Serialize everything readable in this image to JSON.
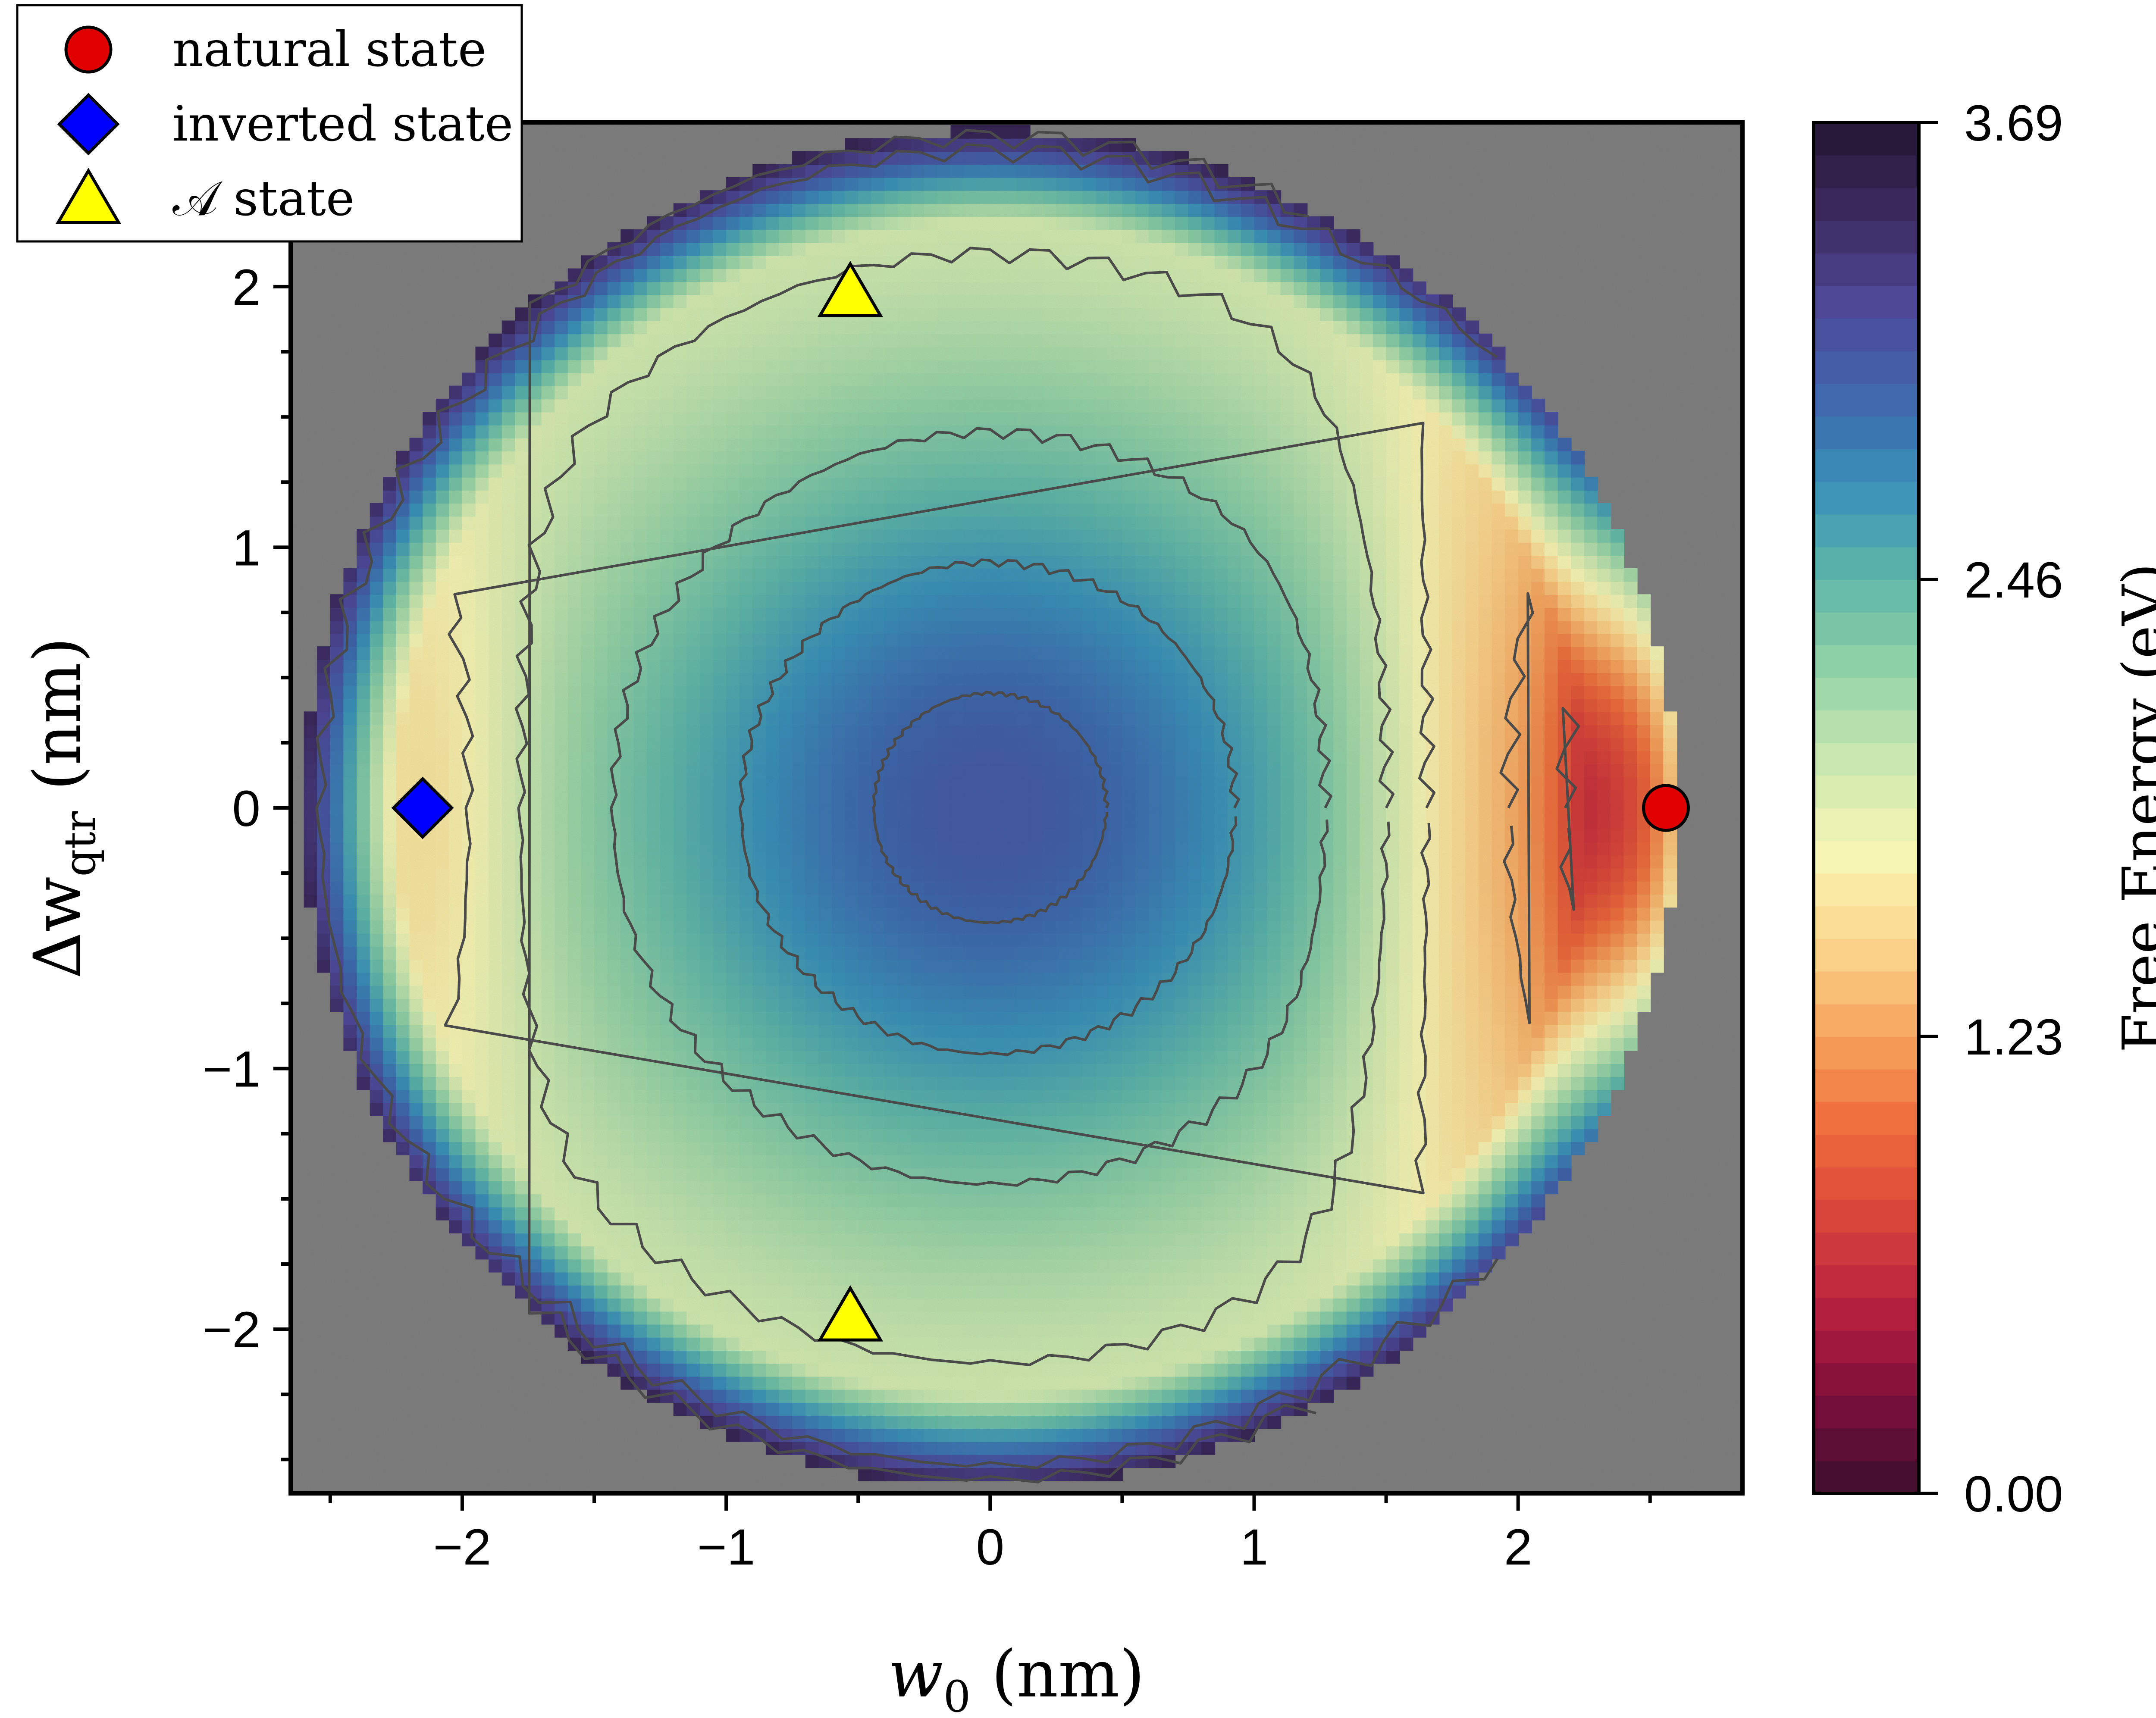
{
  "chart_data": {
    "type": "heatmap",
    "title": "",
    "xlabel": {
      "var": "w",
      "sub": "0",
      "unit": "(nm)"
    },
    "ylabel": {
      "var": "Δw",
      "sub": "qtr",
      "unit": "(nm)"
    },
    "xlim": [
      -2.65,
      2.85
    ],
    "ylim": [
      -2.63,
      2.63
    ],
    "x_ticks": [
      {
        "value": -2,
        "label": "−2"
      },
      {
        "value": -1,
        "label": "−1"
      },
      {
        "value": 0,
        "label": "0"
      },
      {
        "value": 1,
        "label": "1"
      },
      {
        "value": 2,
        "label": "2"
      }
    ],
    "y_ticks": [
      {
        "value": 2,
        "label": "2"
      },
      {
        "value": 1,
        "label": "1"
      },
      {
        "value": 0,
        "label": "0"
      },
      {
        "value": -1,
        "label": "−1"
      },
      {
        "value": -2,
        "label": "−2"
      }
    ],
    "background_color": "#808080",
    "contour_color": "#4a4a4a",
    "domain_radius_nm": 2.6,
    "colorbar": {
      "title": "Free Energy (eV)",
      "min": 0.0,
      "max": 3.69,
      "ticks": [
        {
          "value": 3.69,
          "label": "3.69"
        },
        {
          "value": 2.46,
          "label": "2.46"
        },
        {
          "value": 1.23,
          "label": "1.23"
        },
        {
          "value": 0.0,
          "label": "0.00"
        }
      ],
      "colormap": [
        "#3b0f2e",
        "#7a0d3a",
        "#b5203f",
        "#d7433a",
        "#ed6b3b",
        "#f6a35c",
        "#fcd58c",
        "#f7f6b4",
        "#cbe8b0",
        "#93d2a6",
        "#5fb7a8",
        "#3a91b9",
        "#3f67ad",
        "#4e4898",
        "#3b2a5e",
        "#241533"
      ]
    },
    "energy_levels": [
      {
        "energy": 0.45,
        "color": "#a0143d"
      },
      {
        "energy": 0.85,
        "color": "#d1443f"
      },
      {
        "energy": 1.3,
        "color": "#f0824e"
      },
      {
        "energy": 1.7,
        "color": "#f7c27a"
      },
      {
        "energy": 1.95,
        "color": "#f9ecac"
      },
      {
        "energy": 2.3,
        "color": "#a9dba8"
      },
      {
        "energy": 2.65,
        "color": "#5ab8a6"
      },
      {
        "energy": 2.95,
        "color": "#3f8fc0"
      },
      {
        "energy": 3.15,
        "color": "#4c6eb8"
      },
      {
        "energy": 3.4,
        "color": "#5a4c9c"
      }
    ],
    "series": [
      {
        "name": "natural state",
        "marker": "circle",
        "color": "#e00000",
        "points": [
          [
            2.56,
            0.0
          ]
        ]
      },
      {
        "name": "inverted state",
        "marker": "diamond",
        "color": "#0000ff",
        "points": [
          [
            -2.15,
            0.0
          ]
        ]
      },
      {
        "name": "𝒜 state",
        "marker": "triangle",
        "color": "#ffff00",
        "points": [
          [
            -0.53,
            1.98
          ],
          [
            -0.53,
            -1.95
          ]
        ]
      }
    ]
  }
}
